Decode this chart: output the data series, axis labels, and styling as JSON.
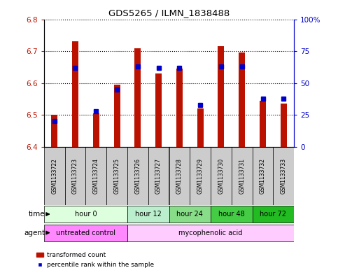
{
  "title": "GDS5265 / ILMN_1838488",
  "samples": [
    "GSM1133722",
    "GSM1133723",
    "GSM1133724",
    "GSM1133725",
    "GSM1133726",
    "GSM1133727",
    "GSM1133728",
    "GSM1133729",
    "GSM1133730",
    "GSM1133731",
    "GSM1133732",
    "GSM1133733"
  ],
  "transformed_count": [
    6.5,
    6.73,
    6.505,
    6.595,
    6.71,
    6.63,
    6.645,
    6.52,
    6.715,
    6.695,
    6.545,
    6.535
  ],
  "percentile_rank": [
    20,
    62,
    28,
    45,
    63,
    62,
    62,
    33,
    63,
    63,
    38,
    38
  ],
  "ylim_left": [
    6.4,
    6.8
  ],
  "ylim_right": [
    0,
    100
  ],
  "yticks_left": [
    6.4,
    6.5,
    6.6,
    6.7,
    6.8
  ],
  "yticks_right": [
    0,
    25,
    50,
    75,
    100
  ],
  "ytick_labels_right": [
    "0",
    "25",
    "50",
    "75",
    "100%"
  ],
  "bar_color": "#bb1100",
  "dot_color": "#0000cc",
  "bar_bottom": 6.4,
  "bar_width": 0.3,
  "time_groups": [
    {
      "label": "hour 0",
      "start": 0,
      "end": 3,
      "color": "#ddffdd"
    },
    {
      "label": "hour 12",
      "start": 4,
      "end": 5,
      "color": "#bbeecc"
    },
    {
      "label": "hour 24",
      "start": 6,
      "end": 7,
      "color": "#88dd88"
    },
    {
      "label": "hour 48",
      "start": 8,
      "end": 9,
      "color": "#44cc44"
    },
    {
      "label": "hour 72",
      "start": 10,
      "end": 11,
      "color": "#22bb22"
    }
  ],
  "agent_groups": [
    {
      "label": "untreated control",
      "start": 0,
      "end": 3,
      "color": "#ff88ff"
    },
    {
      "label": "mycophenolic acid",
      "start": 4,
      "end": 11,
      "color": "#ffccff"
    }
  ],
  "legend_red": "transformed count",
  "legend_blue": "percentile rank within the sample",
  "bg_color": "#ffffff",
  "plot_bg": "#ffffff",
  "sample_bg": "#cccccc",
  "grid_dotted_color": "#000000"
}
